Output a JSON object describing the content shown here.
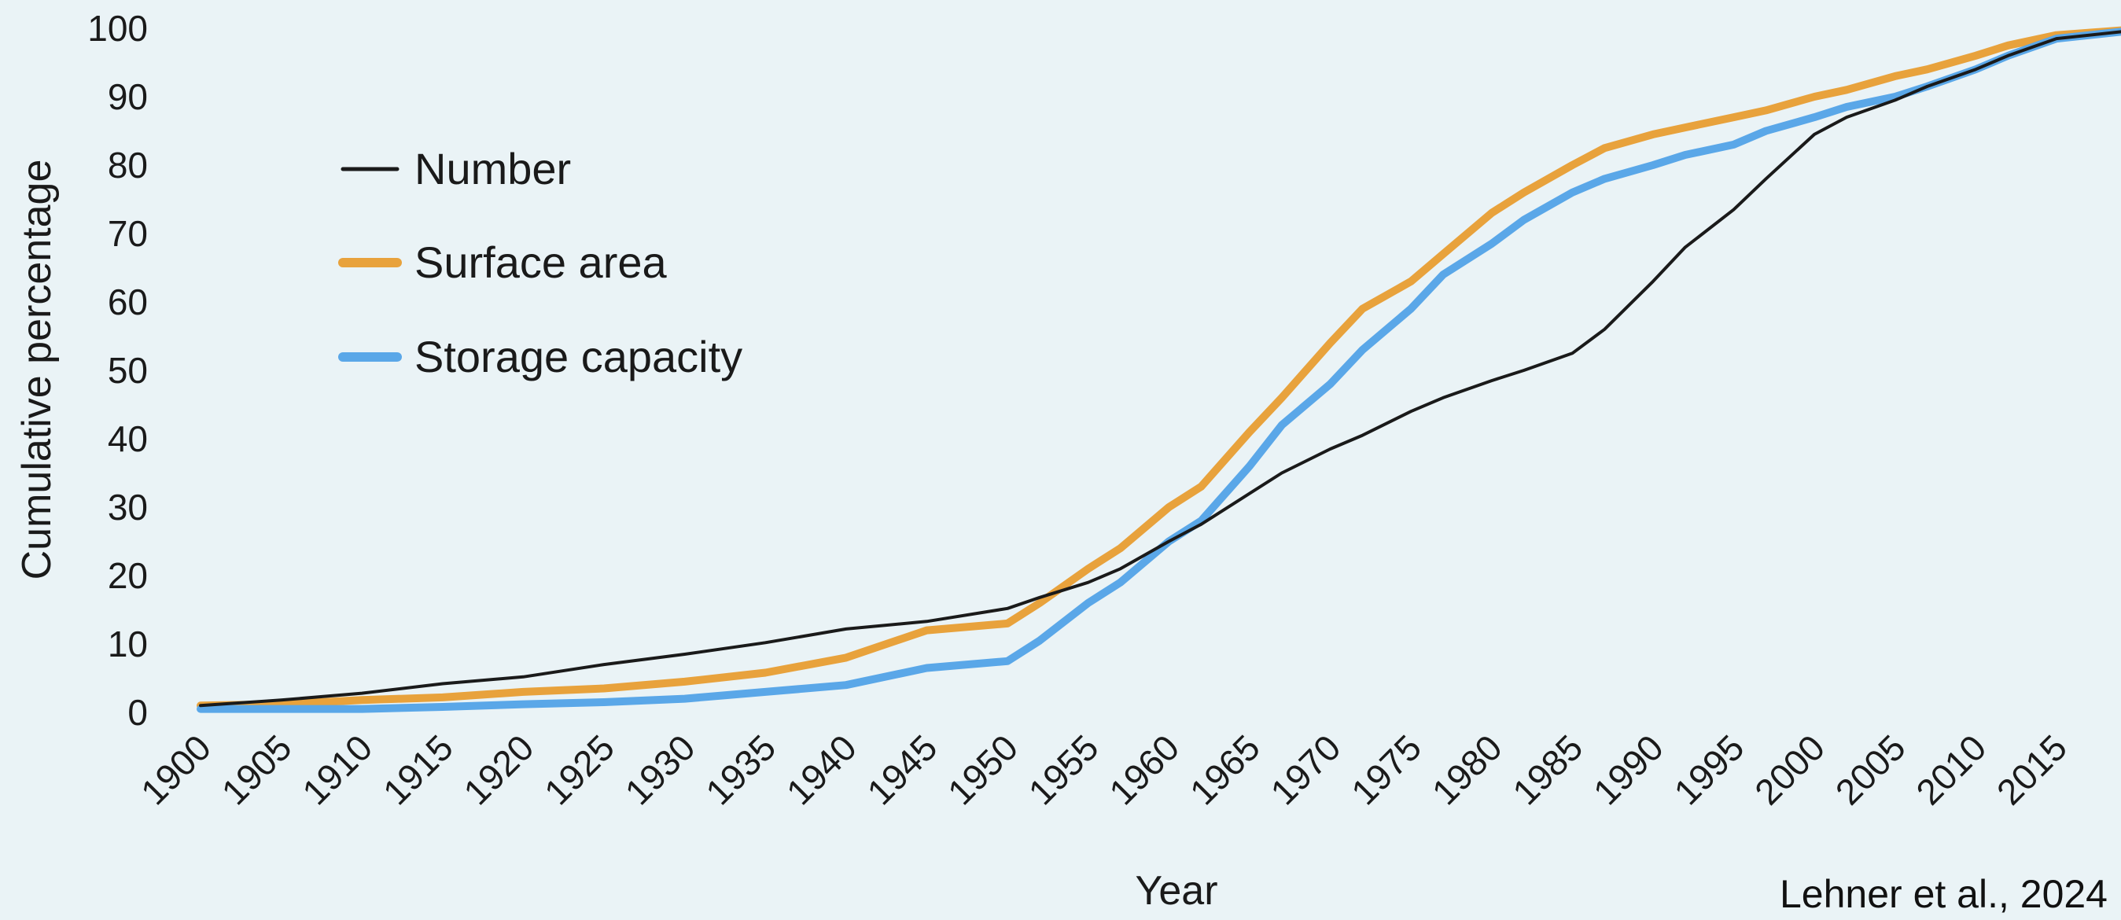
{
  "chart_data": {
    "type": "line",
    "xlabel": "Year",
    "ylabel": "Cumulative percentage",
    "xlim": [
      1900,
      2019
    ],
    "ylim": [
      0,
      100
    ],
    "xticks": [
      1900,
      1905,
      1910,
      1915,
      1920,
      1925,
      1930,
      1935,
      1940,
      1945,
      1950,
      1955,
      1960,
      1965,
      1970,
      1975,
      1980,
      1985,
      1990,
      1995,
      2000,
      2005,
      2010,
      2015
    ],
    "yticks": [
      0,
      10,
      20,
      30,
      40,
      50,
      60,
      70,
      80,
      90,
      100
    ],
    "grid": false,
    "legend_position": "top-left",
    "credit": "Lehner et al., 2024",
    "x": [
      1900,
      1905,
      1910,
      1915,
      1920,
      1925,
      1930,
      1935,
      1940,
      1945,
      1950,
      1952,
      1955,
      1957,
      1960,
      1962,
      1965,
      1967,
      1970,
      1972,
      1975,
      1977,
      1980,
      1982,
      1985,
      1987,
      1990,
      1992,
      1995,
      1997,
      2000,
      2002,
      2005,
      2007,
      2010,
      2012,
      2015,
      2019
    ],
    "series": [
      {
        "name": "Number",
        "color": "#1a1a1a",
        "values": [
          1,
          1.8,
          2.8,
          4.2,
          5.2,
          7.0,
          8.5,
          10.2,
          12.2,
          13.3,
          15.2,
          16.8,
          19.0,
          21.0,
          25.0,
          27.5,
          32.0,
          35.0,
          38.5,
          40.5,
          44.0,
          46.0,
          48.5,
          50.0,
          52.5,
          56.0,
          63.0,
          68.0,
          73.5,
          78.0,
          84.5,
          87.0,
          89.5,
          91.5,
          94.0,
          96.0,
          98.5,
          99.5
        ]
      },
      {
        "name": "Surface area",
        "color": "#e8a23c",
        "values": [
          1,
          1.2,
          1.8,
          2.2,
          3.0,
          3.5,
          4.5,
          5.8,
          8.0,
          12.0,
          13.0,
          16.0,
          21.0,
          24.0,
          30.0,
          33.0,
          41.0,
          46.0,
          54.0,
          59.0,
          63.0,
          67.0,
          73.0,
          76.0,
          80.0,
          82.5,
          84.5,
          85.5,
          87.0,
          88.0,
          90.0,
          91.0,
          93.0,
          94.0,
          96.0,
          97.5,
          99.0,
          99.7
        ]
      },
      {
        "name": "Storage capacity",
        "color": "#5aa7e8",
        "values": [
          0.5,
          0.5,
          0.5,
          0.8,
          1.2,
          1.5,
          2.0,
          3.0,
          4.0,
          6.5,
          7.5,
          10.5,
          16.0,
          19.0,
          25.0,
          28.0,
          36.0,
          42.0,
          48.0,
          53.0,
          59.0,
          64.0,
          68.5,
          72.0,
          76.0,
          78.0,
          80.0,
          81.5,
          83.0,
          85.0,
          87.0,
          88.5,
          90.0,
          91.5,
          94.0,
          96.0,
          98.5,
          99.5
        ]
      }
    ]
  }
}
